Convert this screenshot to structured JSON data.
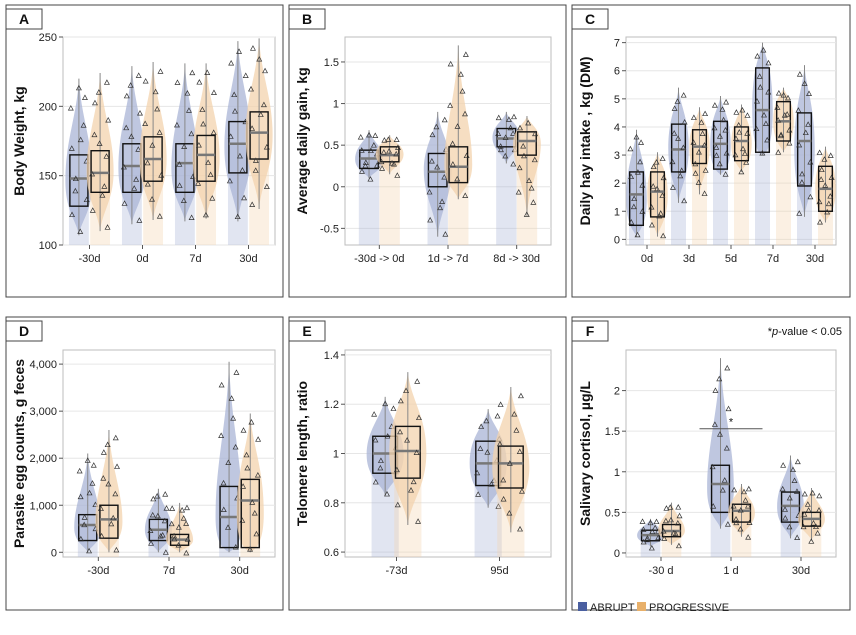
{
  "legend": {
    "abrupt_label": "ABRUPT",
    "progressive_label": "PROGRESSIVE",
    "abrupt_color": "#4a5fa0",
    "progressive_color": "#e8b06a",
    "abrupt_fill": "#a9b4d6",
    "progressive_fill": "#f3d3ae"
  },
  "chart_data": [
    {
      "id": "A",
      "type": "violin-box",
      "ylabel": "Body Weight, kg",
      "categories": [
        "-30d",
        "0d",
        "7d",
        "30d"
      ],
      "ylim": [
        100,
        250
      ],
      "yticks": [
        100,
        150,
        200,
        250
      ],
      "ytick_labels": [
        "100",
        "150",
        "200",
        "250"
      ],
      "series": [
        {
          "name": "ABRUPT",
          "q1": [
            128,
            138,
            138,
            152
          ],
          "median": [
            148,
            157,
            159,
            173
          ],
          "q3": [
            165,
            173,
            173,
            189
          ],
          "range": [
            107,
            220
          ],
          "ranges": [
            [
              107,
              220
            ],
            [
              115,
              229
            ],
            [
              117,
              231
            ],
            [
              117,
              247
            ]
          ]
        },
        {
          "name": "PROGRESSIVE",
          "q1": [
            138,
            146,
            146,
            162
          ],
          "median": [
            152,
            162,
            165,
            181
          ],
          "q3": [
            168,
            178,
            179,
            196
          ],
          "ranges": [
            [
              110,
              224
            ],
            [
              118,
              232
            ],
            [
              119,
              231
            ],
            [
              126,
              249
            ]
          ]
        }
      ]
    },
    {
      "id": "B",
      "type": "violin-box",
      "ylabel": "Average daily gain, kg",
      "categories": [
        "-30d -> 0d",
        "1d -> 7d",
        "8d -> 30d"
      ],
      "ylim": [
        -0.7,
        1.8
      ],
      "yticks": [
        -0.5,
        0,
        0.5,
        1,
        1.5
      ],
      "ytick_labels": [
        "-0.5",
        "0",
        "0.5",
        "1",
        "1.5"
      ],
      "series": [
        {
          "name": "ABRUPT",
          "q1": [
            0.22,
            0.0,
            0.48
          ],
          "median": [
            0.34,
            0.18,
            0.58
          ],
          "q3": [
            0.44,
            0.4,
            0.7
          ],
          "ranges": [
            [
              0.1,
              0.68
            ],
            [
              -0.6,
              0.9
            ],
            [
              0.28,
              0.9
            ]
          ]
        },
        {
          "name": "PROGRESSIVE",
          "q1": [
            0.3,
            0.05,
            0.38
          ],
          "median": [
            0.38,
            0.24,
            0.55
          ],
          "q3": [
            0.48,
            0.48,
            0.66
          ],
          "ranges": [
            [
              0.15,
              0.62
            ],
            [
              -0.15,
              1.7
            ],
            [
              -0.35,
              0.85
            ]
          ]
        }
      ]
    },
    {
      "id": "C",
      "type": "violin-box",
      "ylabel": "Daily hay intake , kg (DM)",
      "categories": [
        "0d",
        "3d",
        "5d",
        "7d",
        "30d"
      ],
      "ylim": [
        -0.2,
        7.2
      ],
      "yticks": [
        0,
        1,
        2,
        3,
        4,
        5,
        6,
        7
      ],
      "ytick_labels": [
        "0",
        "1",
        "2",
        "3",
        "4",
        "5",
        "6",
        "7"
      ],
      "series": [
        {
          "name": "ABRUPT",
          "q1": [
            0.5,
            2.4,
            2.5,
            3.1,
            1.9
          ],
          "median": [
            1.6,
            3.2,
            3.4,
            4.6,
            3.5
          ],
          "q3": [
            2.4,
            4.1,
            4.2,
            6.1,
            4.5
          ],
          "ranges": [
            [
              0.1,
              3.9
            ],
            [
              1.3,
              5.4
            ],
            [
              2.3,
              5.1
            ],
            [
              3.0,
              7.0
            ],
            [
              0.8,
              6.2
            ]
          ]
        },
        {
          "name": "PROGRESSIVE",
          "q1": [
            0.8,
            2.7,
            2.8,
            3.5,
            1.0
          ],
          "median": [
            1.7,
            3.3,
            3.5,
            4.2,
            1.8
          ],
          "q3": [
            2.4,
            3.9,
            4.0,
            4.9,
            2.6
          ],
          "ranges": [
            [
              0.1,
              3.1
            ],
            [
              1.6,
              4.7
            ],
            [
              2.4,
              4.8
            ],
            [
              3.1,
              5.4
            ],
            [
              0.6,
              3.3
            ]
          ]
        }
      ]
    },
    {
      "id": "D",
      "type": "violin-box",
      "ylabel": "Parasite egg counts, g feces",
      "categories": [
        "-30d",
        "7d",
        "30d"
      ],
      "ylim": [
        -100,
        4300
      ],
      "yticks": [
        0,
        1000,
        2000,
        3000,
        4000
      ],
      "ytick_labels": [
        "0",
        "1,000",
        "2,000",
        "3,000",
        "4,000"
      ],
      "series": [
        {
          "name": "ABRUPT",
          "q1": [
            250,
            250,
            100
          ],
          "median": [
            580,
            480,
            750
          ],
          "q3": [
            800,
            700,
            1400
          ],
          "ranges": [
            [
              0,
              2100
            ],
            [
              0,
              1350
            ],
            [
              0,
              4050
            ]
          ]
        },
        {
          "name": "PROGRESSIVE",
          "q1": [
            300,
            150,
            100
          ],
          "median": [
            700,
            270,
            1100
          ],
          "q3": [
            1000,
            380,
            1550
          ],
          "ranges": [
            [
              0,
              2600
            ],
            [
              0,
              1050
            ],
            [
              0,
              2950
            ]
          ]
        }
      ]
    },
    {
      "id": "E",
      "type": "violin-box",
      "ylabel": "Telomere length, ratio",
      "categories": [
        "-73d",
        "95d"
      ],
      "ylim": [
        0.58,
        1.42
      ],
      "yticks": [
        0.6,
        0.8,
        1.0,
        1.2,
        1.4
      ],
      "ytick_labels": [
        "0.6",
        "0.8",
        "1",
        "1.2",
        "1.4"
      ],
      "series": [
        {
          "name": "ABRUPT",
          "q1": [
            0.92,
            0.87
          ],
          "median": [
            1.0,
            0.96
          ],
          "q3": [
            1.07,
            1.05
          ],
          "ranges": [
            [
              0.83,
              1.23
            ],
            [
              0.78,
              1.18
            ]
          ]
        },
        {
          "name": "PROGRESSIVE",
          "q1": [
            0.9,
            0.86
          ],
          "median": [
            1.01,
            0.96
          ],
          "q3": [
            1.11,
            1.03
          ],
          "ranges": [
            [
              0.71,
              1.33
            ],
            [
              0.68,
              1.27
            ]
          ]
        }
      ]
    },
    {
      "id": "F",
      "type": "violin-box",
      "ylabel": "Salivary cortisol, µg/L",
      "categories": [
        "-30 d",
        "1 d",
        "30d"
      ],
      "ylim": [
        -0.05,
        2.5
      ],
      "yticks": [
        0,
        0.5,
        1,
        1.5,
        2
      ],
      "ytick_labels": [
        "0",
        "0.5",
        "1",
        "1.5",
        "2"
      ],
      "note": "p-value < 0.05",
      "note_prefix": "*",
      "significance_marker": "*",
      "series": [
        {
          "name": "ABRUPT",
          "q1": [
            0.15,
            0.5,
            0.38
          ],
          "median": [
            0.22,
            0.85,
            0.58
          ],
          "q3": [
            0.28,
            1.08,
            0.75
          ],
          "ranges": [
            [
              0.08,
              0.42
            ],
            [
              0.3,
              2.4
            ],
            [
              0.18,
              1.2
            ]
          ]
        },
        {
          "name": "PROGRESSIVE",
          "q1": [
            0.2,
            0.38,
            0.33
          ],
          "median": [
            0.27,
            0.52,
            0.42
          ],
          "q3": [
            0.35,
            0.6,
            0.5
          ],
          "ranges": [
            [
              0.1,
              0.62
            ],
            [
              0.2,
              0.85
            ],
            [
              0.15,
              0.8
            ]
          ]
        }
      ]
    }
  ]
}
